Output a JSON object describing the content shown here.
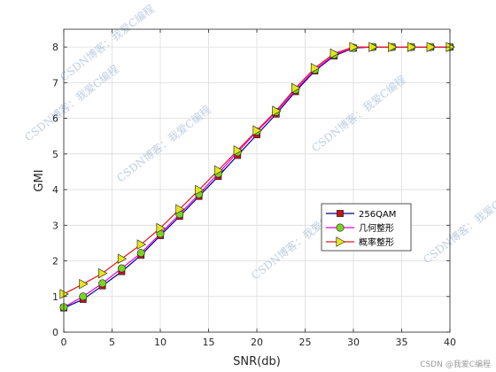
{
  "chart_data": {
    "type": "line",
    "xlabel": "SNR(db)",
    "ylabel": "GMI",
    "xlim": [
      0,
      40
    ],
    "ylim": [
      0,
      8.5
    ],
    "xticks": [
      0,
      5,
      10,
      15,
      20,
      25,
      30,
      35,
      40
    ],
    "yticks": [
      0,
      1,
      2,
      3,
      4,
      5,
      6,
      7,
      8
    ],
    "grid": true,
    "legend_position": "lower-right",
    "x": [
      0,
      2,
      4,
      6,
      8,
      10,
      12,
      14,
      16,
      18,
      20,
      22,
      24,
      26,
      28,
      30,
      32,
      34,
      36,
      38,
      40
    ],
    "series": [
      {
        "name": "256QAM",
        "color": "#00008b",
        "marker": "square",
        "marker_color": "#c0141e",
        "values": [
          0.68,
          0.92,
          1.3,
          1.7,
          2.16,
          2.71,
          3.25,
          3.81,
          4.37,
          4.96,
          5.54,
          6.12,
          6.75,
          7.33,
          7.75,
          7.97,
          8.0,
          8.0,
          8.0,
          8.0,
          8.0
        ]
      },
      {
        "name": "几何整形",
        "color": "#e600e6",
        "marker": "circle",
        "marker_color": "#7cd321",
        "values": [
          0.7,
          1.0,
          1.37,
          1.79,
          2.22,
          2.76,
          3.31,
          3.87,
          4.45,
          5.05,
          5.63,
          6.18,
          6.8,
          7.36,
          7.78,
          7.98,
          8.0,
          8.0,
          8.0,
          8.0,
          8.0
        ]
      },
      {
        "name": "概率整形",
        "color": "#e8141e",
        "marker": "triangle-right",
        "marker_color": "#e5e51e",
        "values": [
          1.07,
          1.35,
          1.65,
          2.06,
          2.46,
          2.92,
          3.45,
          3.99,
          4.54,
          5.1,
          5.66,
          6.21,
          6.85,
          7.41,
          7.82,
          8.0,
          8.0,
          8.0,
          8.0,
          8.0,
          8.0
        ]
      }
    ]
  },
  "watermarks": [
    "CSDN博客：我爱C编程",
    "CSDN博客：我爱C编程",
    "CSDN博客：我爱C编程",
    "CSDN博客：我爱C编程",
    "CSDN博客：我爱C编程",
    "CSDN博客：我爱C编程"
  ],
  "credit": "CSDN @我爱C编程"
}
